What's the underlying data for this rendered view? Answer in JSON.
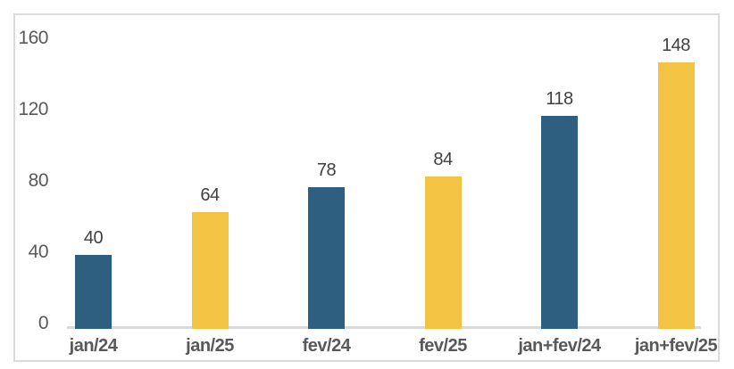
{
  "chart_data": {
    "type": "bar",
    "title": "",
    "xlabel": "",
    "ylabel": "",
    "categories": [
      "jan/24",
      "jan/25",
      "fev/24",
      "fev/25",
      "jan+fev/24",
      "jan+fev/25"
    ],
    "values": [
      40,
      64,
      78,
      84,
      118,
      148
    ],
    "bar_colors": [
      "#2E5F80",
      "#F3C344",
      "#2E5F80",
      "#F3C344",
      "#2E5F80",
      "#F3C344"
    ],
    "y_ticks": [
      0,
      40,
      80,
      120,
      160
    ],
    "ylim": [
      0,
      160
    ],
    "grid": false,
    "legend": "none",
    "data_labels_visible": true
  },
  "colors": {
    "bar_blue": "#2E5F80",
    "bar_yellow": "#F3C344",
    "axis_line": "#D9D9D9",
    "frame_border": "#DBDBDB",
    "tick_label": "#595959",
    "category_label": "#595959",
    "value_label": "#3F3F3F",
    "background": "#FFFFFF"
  }
}
